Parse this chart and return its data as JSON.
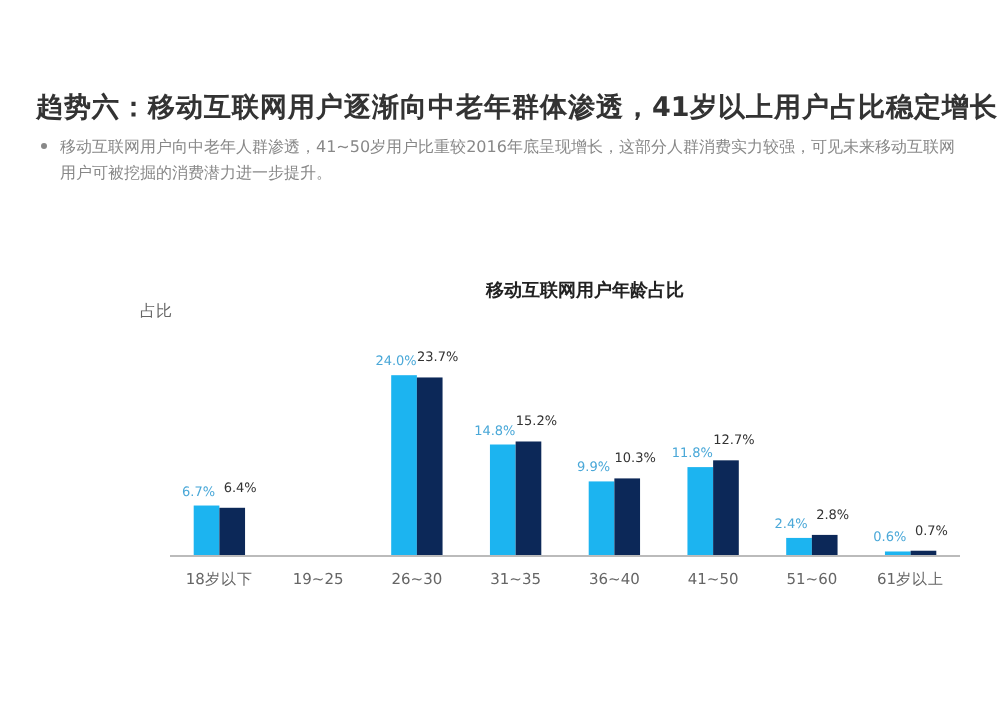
{
  "chart_data": {
    "type": "bar",
    "title": "移动互联网用户年龄占比",
    "subtitle": "趋势六：移动互联网用户逐渐向中老年群体渗透，41岁以上用户占比稳定增长",
    "annotations": [
      "移动互联网用户向中老年人群渗透，41~50岁用户比重较2016年底呈现增长，这部分人群消费实力较强，可见未来移动互联网用户可被挖掘的消费潜力进一步提升。"
    ],
    "ylabel": "占比",
    "categories": [
      "18岁以下",
      "19~25",
      "26~30",
      "31~35",
      "36~40",
      "41~50",
      "51~60",
      "61岁以上"
    ],
    "series": [
      {
        "color": "#1cb4f0",
        "values": [
          6.7,
          null,
          24.0,
          14.8,
          9.9,
          11.8,
          2.4,
          0.6
        ],
        "value_labels": [
          "6.7%",
          null,
          "24.0%",
          "14.8%",
          "9.9%",
          "11.8%",
          "2.4%",
          "0.6%"
        ]
      },
      {
        "color": "#0c2858",
        "values": [
          6.4,
          null,
          23.7,
          15.2,
          10.3,
          12.7,
          2.8,
          0.7
        ],
        "value_labels": [
          "6.4%",
          null,
          "23.7%",
          "15.2%",
          "10.3%",
          "12.7%",
          "2.8%",
          "0.7%"
        ]
      }
    ],
    "grid": false
  }
}
